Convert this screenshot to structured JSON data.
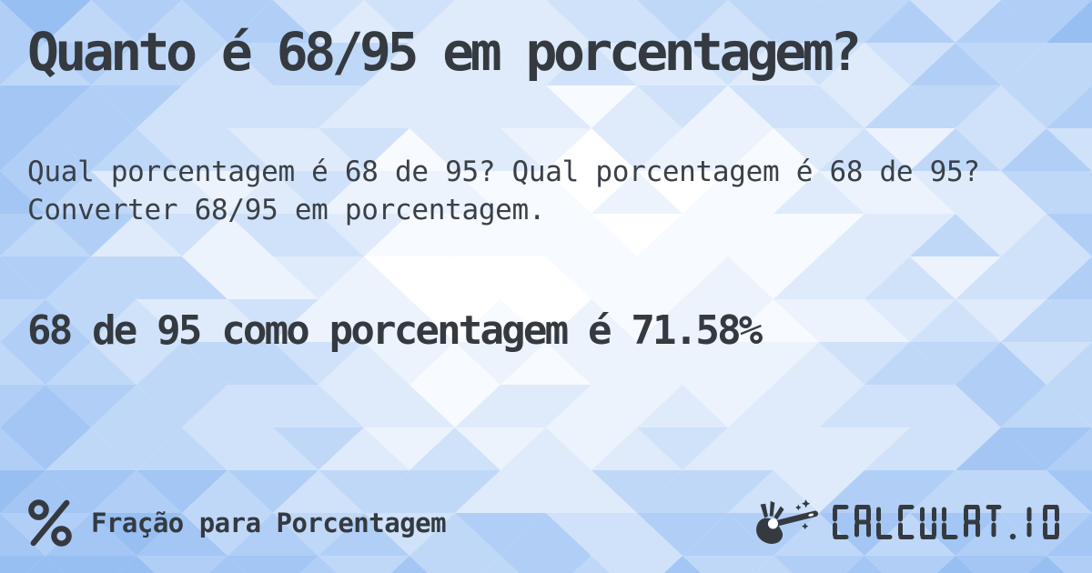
{
  "page": {
    "title": "Quanto é 68/95 em porcentagem?",
    "description": "Qual porcentagem é 68 de 95? Qual porcentagem é 68 de 95? Converter 68/95 em porcentagem.",
    "answer": "68 de 95 como porcentagem é 71.58%"
  },
  "footer": {
    "category_icon": "percent-icon",
    "category_label": "Fração para Porcentagem",
    "logo_icon": "magic-wand-hand-icon",
    "logo_text": "CALCULAT.IO"
  },
  "colors": {
    "text": "#343a40",
    "background_blues": [
      "#ffffff",
      "#f7fafe",
      "#ecf3fd",
      "#dfebfb",
      "#d0e2fa",
      "#c0d8f8",
      "#b1cff6",
      "#a3c6f4",
      "#98bff2"
    ]
  }
}
